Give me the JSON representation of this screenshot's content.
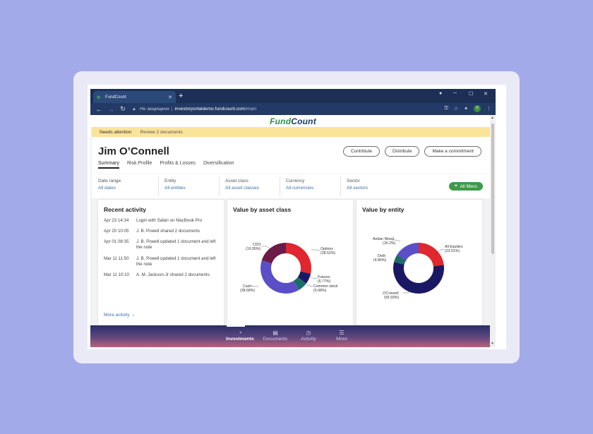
{
  "browser": {
    "tab_title": "FundCount",
    "tab_close": "✕",
    "new_tab": "+",
    "url_insecure": "Не защищено",
    "url_separator": "|",
    "url_host": "investorportaldemo.fundcount.com",
    "url_path": "/main",
    "profile_initial": "Y"
  },
  "brand": {
    "part1": "Fund",
    "part2": "Count"
  },
  "attention": {
    "label": "Needs attention",
    "link": "Review 2 documents"
  },
  "investor": {
    "name": "Jim O’Connell"
  },
  "actions": {
    "contribute": "Contribute",
    "distribute": "Distribute",
    "commitment": "Make a commitment"
  },
  "subtabs": [
    "Summary",
    "Risk Profile",
    "Profits & Losses",
    "Diversification"
  ],
  "filters": [
    {
      "label": "Date range",
      "value": "All dates"
    },
    {
      "label": "Entity",
      "value": "All entities"
    },
    {
      "label": "Asset class",
      "value": "All asset classes"
    },
    {
      "label": "Currency",
      "value": "All currencies"
    },
    {
      "label": "Sector",
      "value": "All sectors"
    }
  ],
  "all_filters": "All filters",
  "recent_activity": {
    "title": "Recent activity",
    "items": [
      {
        "time": "Apr 23 14:34",
        "text": "Login with Safari on MacBook Pro"
      },
      {
        "time": "Apr 20 10:05",
        "text": "J. B. Powell shared 2 documents"
      },
      {
        "time": "Apr 01 08:35",
        "text": "J. B. Powell updated 1 document and left the note"
      },
      {
        "time": "Mar 11 11:50",
        "text": "J. B. Powell updated 1 document and left the note"
      },
      {
        "time": "Mar 11 10:10",
        "text": "A. M. Jackson-Jr shared 2 documents"
      }
    ],
    "more": "More activity →"
  },
  "asset_chart": {
    "title": "Value by asset class",
    "slices": [
      {
        "name": "Options",
        "pct": "(28.52%)",
        "value": 28.52,
        "color": "#e0262e"
      },
      {
        "name": "Futures",
        "pct": "(6.77%)",
        "value": 6.77,
        "color": "#1b1863"
      },
      {
        "name": "Common stock",
        "pct": "(5.98%)",
        "value": 5.98,
        "color": "#1a6e68"
      },
      {
        "name": "Cash",
        "pct": "(38.68%)",
        "value": 38.68,
        "color": "#5a4fc7"
      },
      {
        "name": "CDO",
        "pct": "(19.95%)",
        "value": 19.95,
        "color": "#6e1a46"
      }
    ]
  },
  "entity_chart": {
    "title": "Value by entity",
    "slices": [
      {
        "name": "All Equities",
        "pct": "(23.01%)",
        "value": 23.01,
        "color": "#e0262e"
      },
      {
        "name": "O'Connell",
        "pct": "(55.93%)",
        "value": 55.93,
        "color": "#1b1863"
      },
      {
        "name": "Debt",
        "pct": "(4.86%)",
        "value": 4.86,
        "color": "#1a6e68"
      },
      {
        "name": "Aedan Wood",
        "pct": "(16.2%)",
        "value": 16.2,
        "color": "#5a4fc7"
      }
    ]
  },
  "bottom_nav": [
    "Investments",
    "Documents",
    "Activity",
    "More"
  ]
}
